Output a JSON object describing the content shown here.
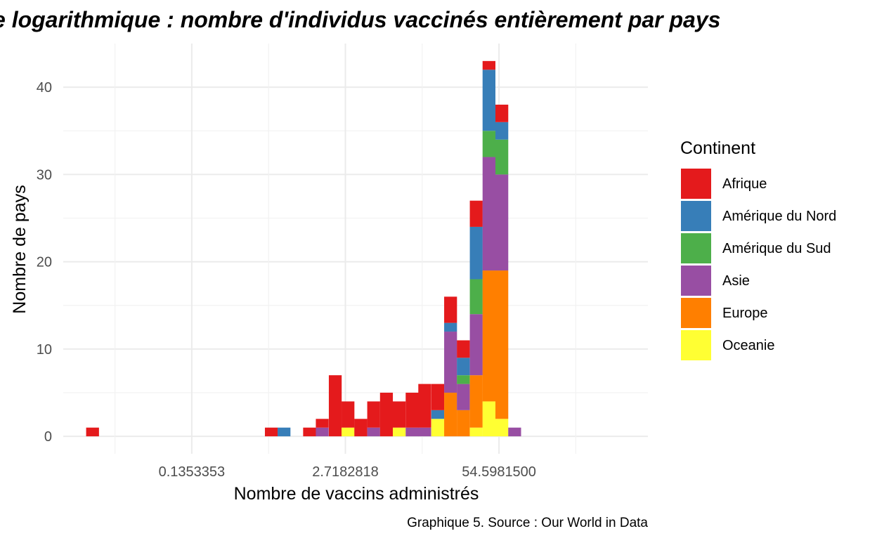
{
  "chart_data": {
    "type": "bar",
    "stacked": true,
    "title": "e logarithmique : nombre d'individus vaccinés entièrement par pays",
    "xlabel": "Nombre de vaccins administrés",
    "ylabel": "Nombre de pays",
    "caption": "Graphique 5. Source : Our World in Data",
    "x_scale": "log",
    "x_tick_labels": [
      "0.1353353",
      "2.7182818",
      "54.5981500"
    ],
    "x_ticks": [
      0.1353353,
      2.7182818,
      54.59815
    ],
    "x_range": [
      0.011,
      1000
    ],
    "y_ticks": [
      0,
      10,
      20,
      30,
      40
    ],
    "y_range": [
      -2,
      45
    ],
    "grid": true,
    "legend_title": "Continent",
    "legend_position": "right",
    "categories": [
      "Afrique",
      "Amérique du Nord",
      "Amérique du Sud",
      "Asie",
      "Europe",
      "Oceanie"
    ],
    "colors": {
      "Afrique": "#E41A1C",
      "Amérique du Nord": "#377EB8",
      "Amérique du Sud": "#4DAF4A",
      "Asie": "#984EA3",
      "Europe": "#FF7F00",
      "Oceanie": "#FFFF33"
    },
    "bins": [
      {
        "center": 0.0195,
        "counts": {
          "Afrique": 1
        }
      },
      {
        "center": 0.64,
        "counts": {
          "Afrique": 1
        }
      },
      {
        "center": 0.82,
        "counts": {
          "Amérique du Nord": 1
        }
      },
      {
        "center": 1.35,
        "counts": {
          "Afrique": 1
        }
      },
      {
        "center": 1.73,
        "counts": {
          "Asie": 1,
          "Afrique": 1
        }
      },
      {
        "center": 2.23,
        "counts": {
          "Afrique": 7
        }
      },
      {
        "center": 2.86,
        "counts": {
          "Oceanie": 1,
          "Afrique": 3
        }
      },
      {
        "center": 3.67,
        "counts": {
          "Afrique": 2
        }
      },
      {
        "center": 4.72,
        "counts": {
          "Asie": 1,
          "Afrique": 3
        }
      },
      {
        "center": 6.06,
        "counts": {
          "Afrique": 5
        }
      },
      {
        "center": 7.78,
        "counts": {
          "Oceanie": 1,
          "Afrique": 3
        }
      },
      {
        "center": 10.0,
        "counts": {
          "Asie": 1,
          "Afrique": 4
        }
      },
      {
        "center": 12.8,
        "counts": {
          "Asie": 1,
          "Afrique": 5
        }
      },
      {
        "center": 16.5,
        "counts": {
          "Oceanie": 2,
          "Amérique du Nord": 1,
          "Afrique": 3
        }
      },
      {
        "center": 21.2,
        "counts": {
          "Europe": 5,
          "Asie": 7,
          "Amérique du Nord": 1,
          "Afrique": 3
        }
      },
      {
        "center": 27.2,
        "counts": {
          "Europe": 3,
          "Asie": 3,
          "Amérique du Sud": 1,
          "Amérique du Nord": 2,
          "Afrique": 2
        }
      },
      {
        "center": 35.0,
        "counts": {
          "Oceanie": 1,
          "Europe": 6,
          "Asie": 7,
          "Amérique du Sud": 4,
          "Amérique du Nord": 6,
          "Afrique": 3
        }
      },
      {
        "center": 44.9,
        "counts": {
          "Oceanie": 4,
          "Europe": 15,
          "Asie": 13,
          "Amérique du Sud": 3,
          "Amérique du Nord": 7,
          "Afrique": 1
        }
      },
      {
        "center": 57.7,
        "counts": {
          "Oceanie": 2,
          "Europe": 17,
          "Asie": 11,
          "Amérique du Sud": 4,
          "Amérique du Nord": 2,
          "Afrique": 2
        }
      },
      {
        "center": 74.1,
        "counts": {
          "Asie": 1
        }
      }
    ]
  }
}
